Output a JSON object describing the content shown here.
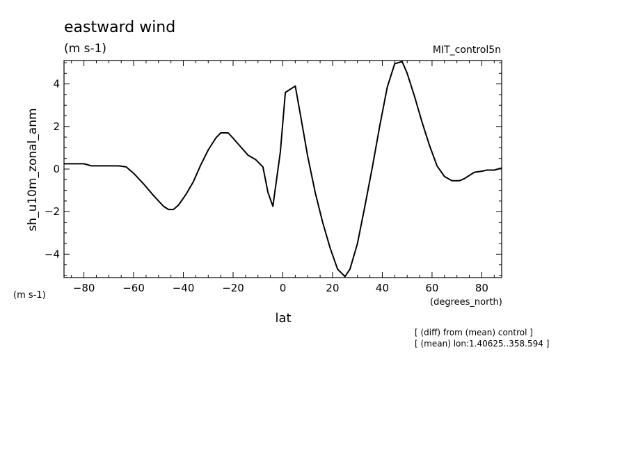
{
  "header": {
    "title": "eastward wind",
    "units": "(m s-1)",
    "dataset": "MIT_control5n"
  },
  "chart_data": {
    "type": "line",
    "title": "eastward wind",
    "subtitle": "(m s-1)",
    "xlabel": "lat",
    "ylabel": "sh_u10m_zonal_anm",
    "x_units": "(degrees_north)",
    "y_units": "(m s-1)",
    "xlim": [
      -88,
      88
    ],
    "ylim": [
      -5.1,
      5.1
    ],
    "xticks": [
      -80,
      -60,
      -40,
      -20,
      0,
      20,
      40,
      60,
      80
    ],
    "yticks": [
      -4,
      -2,
      0,
      2,
      4
    ],
    "xtick_labels": [
      "−80",
      "−60",
      "−40",
      "−20",
      "0",
      "20",
      "40",
      "60",
      "80"
    ],
    "ytick_labels": [
      "−4",
      "−2",
      "0",
      "2",
      "4"
    ],
    "grid": false,
    "notes": [
      "[ (diff) from (mean) control ]",
      "[ (mean) lon:1.40625..358.594 ]"
    ],
    "series": [
      {
        "x": [
          -88,
          -84,
          -80,
          -77,
          -74,
          -70,
          -66,
          -63,
          -60,
          -56,
          -52,
          -48,
          -46,
          -44,
          -42,
          -39,
          -36,
          -33,
          -30,
          -27,
          -25,
          -22,
          -20,
          -17,
          -14,
          -11,
          -8,
          -6,
          -4,
          -1,
          1,
          5,
          7,
          10,
          13,
          16,
          19,
          22,
          25,
          27,
          30,
          33,
          36,
          39,
          42,
          45,
          48,
          50,
          53,
          56,
          59,
          62,
          65,
          68,
          71,
          73,
          75,
          77,
          80,
          82,
          85,
          88
        ],
        "y": [
          0.25,
          0.25,
          0.25,
          0.15,
          0.15,
          0.15,
          0.15,
          0.1,
          -0.2,
          -0.7,
          -1.25,
          -1.75,
          -1.9,
          -1.9,
          -1.7,
          -1.2,
          -0.6,
          0.2,
          0.9,
          1.45,
          1.7,
          1.7,
          1.45,
          1.05,
          0.65,
          0.45,
          0.1,
          -1.1,
          -1.75,
          0.8,
          3.6,
          3.9,
          2.6,
          0.6,
          -1.1,
          -2.5,
          -3.7,
          -4.7,
          -5.05,
          -4.7,
          -3.5,
          -1.75,
          0.1,
          2.05,
          3.85,
          4.95,
          5.05,
          4.5,
          3.4,
          2.2,
          1.1,
          0.15,
          -0.35,
          -0.55,
          -0.55,
          -0.45,
          -0.3,
          -0.15,
          -0.1,
          -0.05,
          -0.05,
          0.05
        ]
      }
    ]
  }
}
